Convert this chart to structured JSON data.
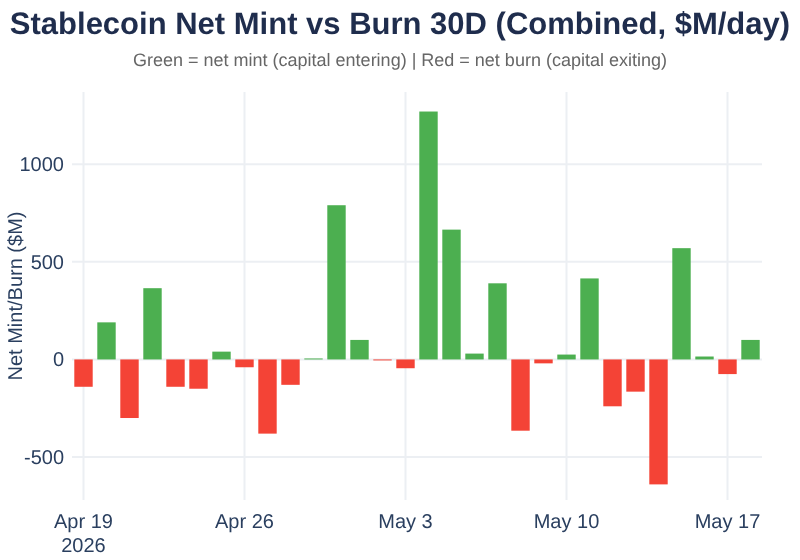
{
  "chart_data": {
    "type": "bar",
    "title": "Stablecoin Net Mint vs Burn 30D (Combined, $M/day)",
    "subtitle": "Green = net mint (capital entering) | Red = net burn (capital exiting)",
    "ylabel": "Net Mint/Burn ($M)",
    "x": [
      "2026-04-19",
      "2026-04-20",
      "2026-04-21",
      "2026-04-22",
      "2026-04-23",
      "2026-04-24",
      "2026-04-25",
      "2026-04-26",
      "2026-04-27",
      "2026-04-28",
      "2026-04-29",
      "2026-04-30",
      "2026-05-01",
      "2026-05-02",
      "2026-05-03",
      "2026-05-04",
      "2026-05-05",
      "2026-05-06",
      "2026-05-07",
      "2026-05-08",
      "2026-05-09",
      "2026-05-10",
      "2026-05-11",
      "2026-05-12",
      "2026-05-13",
      "2026-05-14",
      "2026-05-15",
      "2026-05-16",
      "2026-05-17",
      "2026-05-18"
    ],
    "values": [
      -140,
      190,
      -300,
      365,
      -140,
      -150,
      40,
      -40,
      -380,
      -130,
      5,
      790,
      100,
      -5,
      -45,
      1270,
      665,
      30,
      390,
      -365,
      -20,
      25,
      415,
      -240,
      -165,
      -640,
      570,
      15,
      -75,
      100
    ],
    "colors": [
      "#f44336",
      "#4caf50",
      "#f44336",
      "#4caf50",
      "#f44336",
      "#f44336",
      "#4caf50",
      "#f44336",
      "#f44336",
      "#f44336",
      "#4caf50",
      "#4caf50",
      "#4caf50",
      "#f44336",
      "#f44336",
      "#4caf50",
      "#4caf50",
      "#4caf50",
      "#4caf50",
      "#f44336",
      "#f44336",
      "#4caf50",
      "#4caf50",
      "#f44336",
      "#f44336",
      "#f44336",
      "#4caf50",
      "#4caf50",
      "#f44336",
      "#4caf50"
    ],
    "xlim": [
      "2026-04-18T12:00",
      "2026-05-18T12:00"
    ],
    "xticks": [
      {
        "value": "2026-04-19",
        "label": "Apr 19\n2026"
      },
      {
        "value": "2026-04-26",
        "label": "Apr 26"
      },
      {
        "value": "2026-05-03",
        "label": "May 3"
      },
      {
        "value": "2026-05-10",
        "label": "May 10"
      },
      {
        "value": "2026-05-17",
        "label": "May 17"
      }
    ],
    "ylim": [
      -720,
      1370
    ],
    "yticks": [
      -500,
      0,
      500,
      1000
    ],
    "grid": true
  }
}
